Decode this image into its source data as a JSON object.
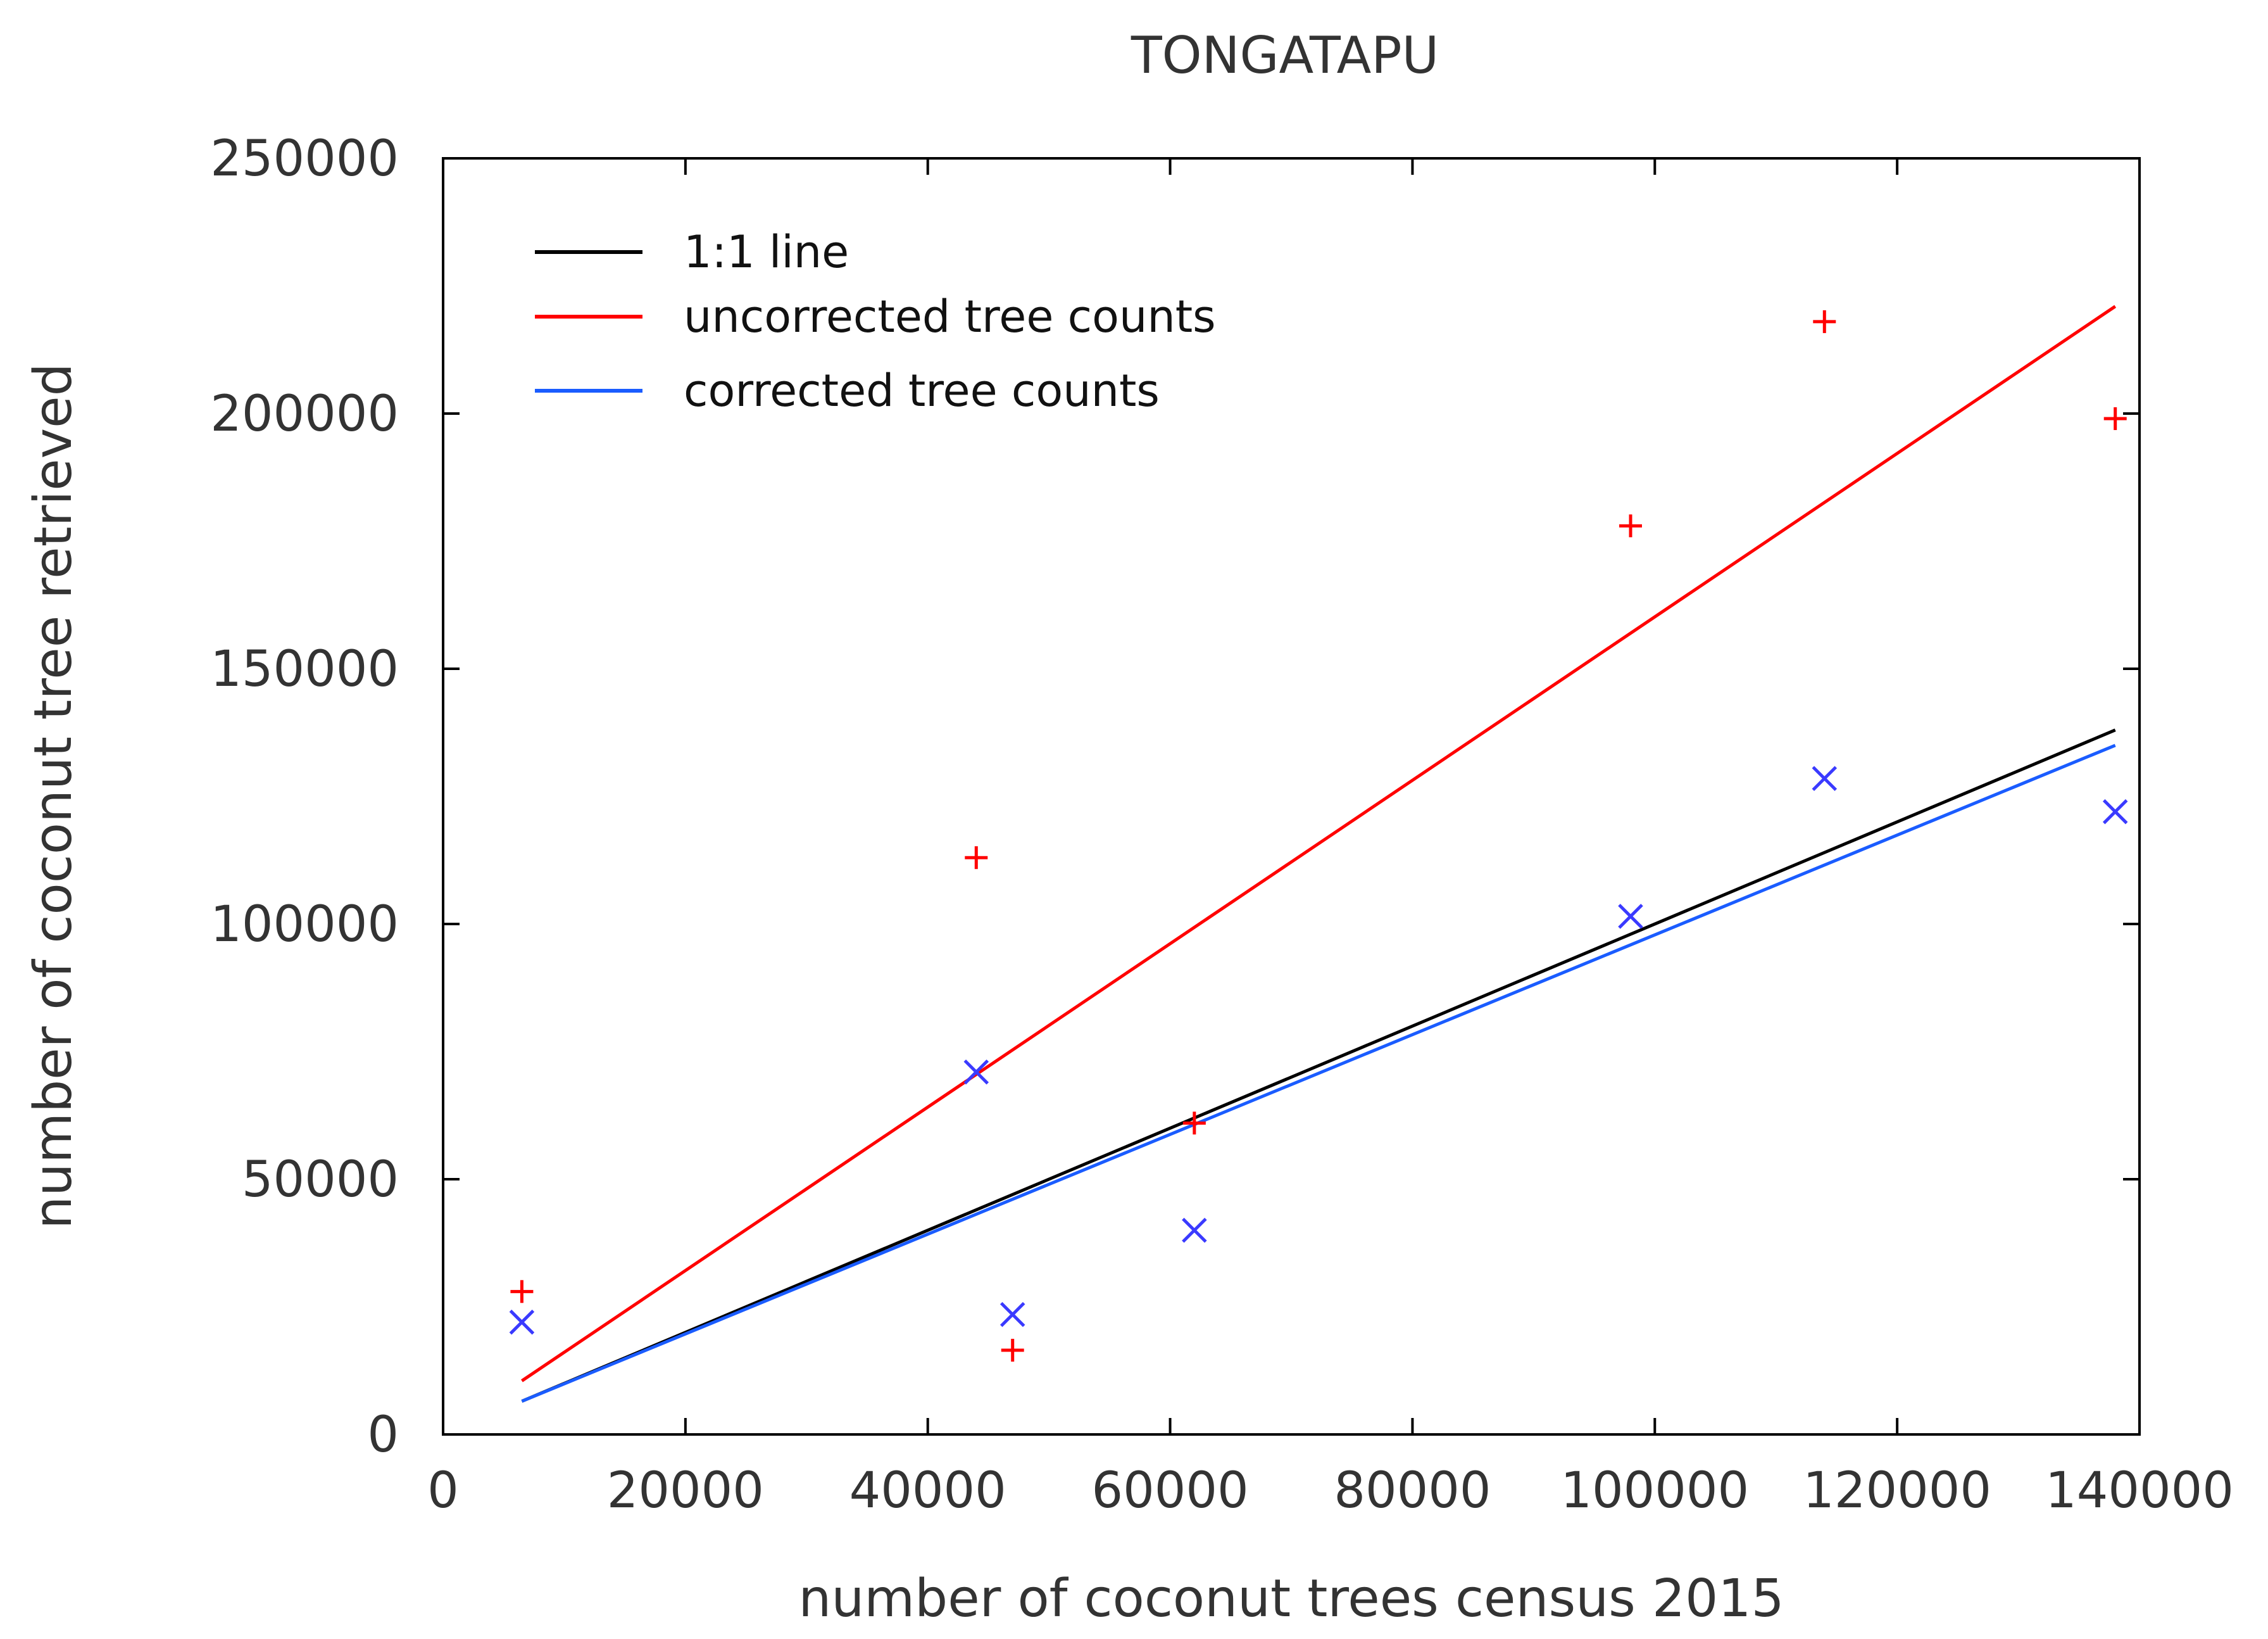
{
  "chart_data": {
    "type": "scatter",
    "title": "TONGATAPU",
    "xlabel": "number of coconut trees census 2015",
    "ylabel": "number of coconut tree retrieved",
    "xlim": [
      0,
      140000
    ],
    "ylim": [
      0,
      250000
    ],
    "xticks": [
      0,
      20000,
      40000,
      60000,
      80000,
      100000,
      120000,
      140000
    ],
    "yticks": [
      0,
      50000,
      100000,
      150000,
      200000,
      250000
    ],
    "xtick_labels": [
      "0",
      "20000",
      "40000",
      "60000",
      "80000",
      "100000",
      "120000",
      "140000"
    ],
    "ytick_labels": [
      "0",
      "50000",
      "100000",
      "150000",
      "200000",
      "250000"
    ],
    "legend_position": "top-left",
    "series": [
      {
        "name": "1:1 line",
        "kind": "line",
        "color": "#000000",
        "x": [
          6500,
          138000
        ],
        "y": [
          6500,
          138000
        ]
      },
      {
        "name": "uncorrected tree counts",
        "kind": "line",
        "color": "#ff0000",
        "x": [
          6500,
          138000
        ],
        "y": [
          10500,
          221000
        ]
      },
      {
        "name": "corrected tree counts",
        "kind": "line",
        "color": "#1a5cff",
        "x": [
          6500,
          138000
        ],
        "y": [
          6500,
          135000
        ]
      },
      {
        "name": "uncorrected tree counts (points)",
        "kind": "points",
        "marker": "plus",
        "color": "#ff0000",
        "x": [
          6500,
          44000,
          47000,
          62000,
          98000,
          114000,
          138000
        ],
        "y": [
          28000,
          113000,
          16500,
          61000,
          178000,
          218000,
          199000
        ]
      },
      {
        "name": "corrected tree counts (points)",
        "kind": "points",
        "marker": "cross",
        "color": "#3a3aff",
        "x": [
          6500,
          44000,
          47000,
          62000,
          98000,
          114000,
          138000
        ],
        "y": [
          22000,
          71000,
          23500,
          40000,
          101500,
          128500,
          122000
        ]
      }
    ],
    "legend": [
      {
        "label": "1:1 line",
        "color": "#000000"
      },
      {
        "label": "uncorrected tree counts",
        "color": "#ff0000"
      },
      {
        "label": "corrected tree counts",
        "color": "#1a5cff"
      }
    ]
  }
}
